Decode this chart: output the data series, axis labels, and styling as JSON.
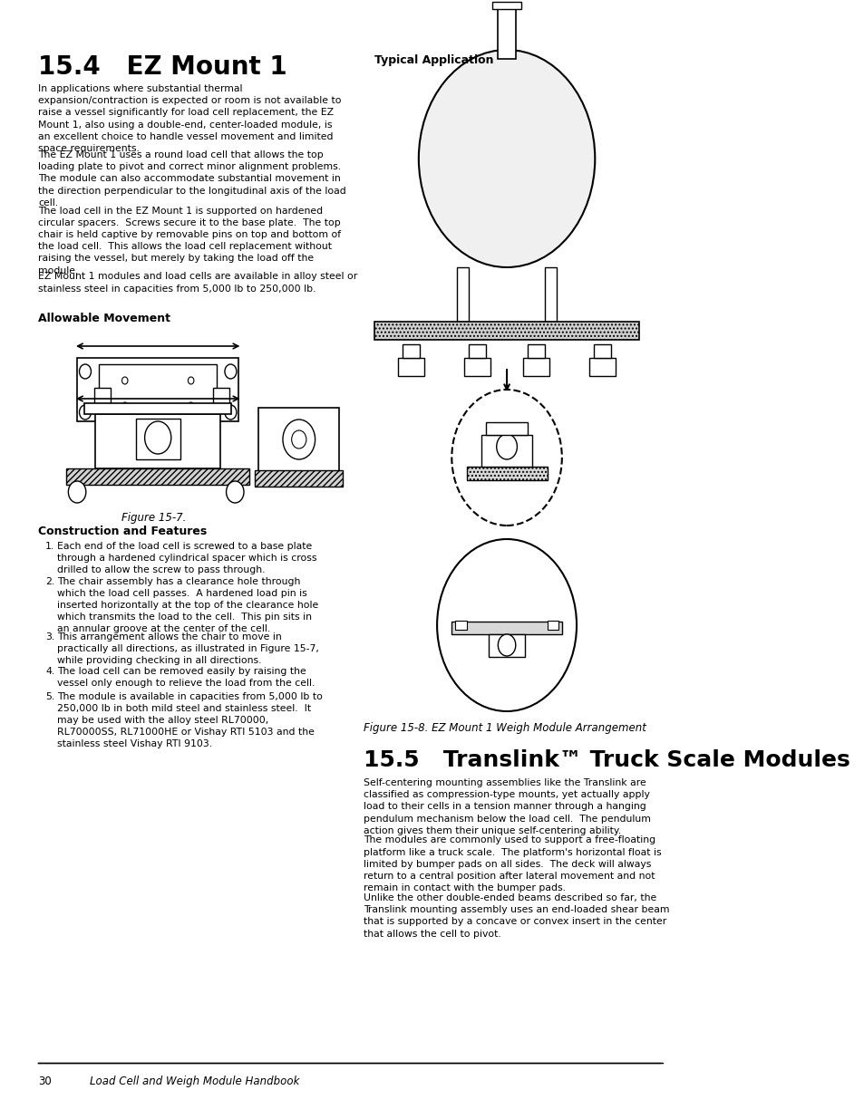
{
  "page_bg": "#ffffff",
  "title_154": "15.4   EZ Mount 1",
  "title_155": "15.5   Translink™ Truck Scale Modules",
  "typical_application_label": "Typical Application",
  "fig_7_caption": "Figure 15-7.",
  "fig_8_caption": "Figure 15-8. EZ Mount 1 Weigh Module Arrangement",
  "section_allowable": "Allowable Movement",
  "section_construction": "Construction and Features",
  "footer_line": true,
  "footer_page": "30",
  "footer_text": "Load Cell and Weigh Module Handbook",
  "body_text_154_1": "In applications where substantial thermal\nexpansion/contraction is expected or room is not available to\nraise a vessel significantly for load cell replacement, the EZ\nMount 1, also using a double-end, center-loaded module, is\nan excellent choice to handle vessel movement and limited\nspace requirements.",
  "body_text_154_2": "The EZ Mount 1 uses a round load cell that allows the top\nloading plate to pivot and correct minor alignment problems.\nThe module can also accommodate substantial movement in\nthe direction perpendicular to the longitudinal axis of the load\ncell.",
  "body_text_154_3": "The load cell in the EZ Mount 1 is supported on hardened\ncircular spacers.  Screws secure it to the base plate.  The top\nchair is held captive by removable pins on top and bottom of\nthe load cell.  This allows the load cell replacement without\nraising the vessel, but merely by taking the load off the\nmodule.",
  "body_text_154_4": "EZ Mount 1 modules and load cells are available in alloy steel or\nstainless steel in capacities from 5,000 lb to 250,000 lb.",
  "construction_items": [
    "Each end of the load cell is screwed to a base plate\nthrough a hardened cylindrical spacer which is cross\ndrilled to allow the screw to pass through.",
    "The chair assembly has a clearance hole through\nwhich the load cell passes.  A hardened load pin is\ninserted horizontally at the top of the clearance hole\nwhich transmits the load to the cell.  This pin sits in\nan annular groove at the center of the cell.",
    "This arrangement allows the chair to move in\npractically all directions, as illustrated in Figure 15-7,\nwhile providing checking in all directions.",
    "The load cell can be removed easily by raising the\nvessel only enough to relieve the load from the cell.",
    "The module is available in capacities from 5,000 lb to\n250,000 lb in both mild steel and stainless steel.  It\nmay be used with the alloy steel RL70000,\nRL70000SS, RL71000HE or Vishay RTI 5103 and the\nstainless steel Vishay RTI 9103."
  ],
  "body_text_155_1": "Self-centering mounting assemblies like the Translink are\nclassified as compression-type mounts, yet actually apply\nload to their cells in a tension manner through a hanging\npendulum mechanism below the load cell.  The pendulum\naction gives them their unique self-centering ability.",
  "body_text_155_2": "The modules are commonly used to support a free-floating\nplatform like a truck scale.  The platform's horizontal float is\nlimited by bumper pads on all sides.  The deck will always\nreturn to a central position after lateral movement and not\nremain in contact with the bumper pads.",
  "body_text_155_3": "Unlike the other double-ended beams described so far, the\nTranslink mounting assembly uses an end-loaded shear beam\nthat is supported by a concave or convex insert in the center\nthat allows the cell to pivot."
}
